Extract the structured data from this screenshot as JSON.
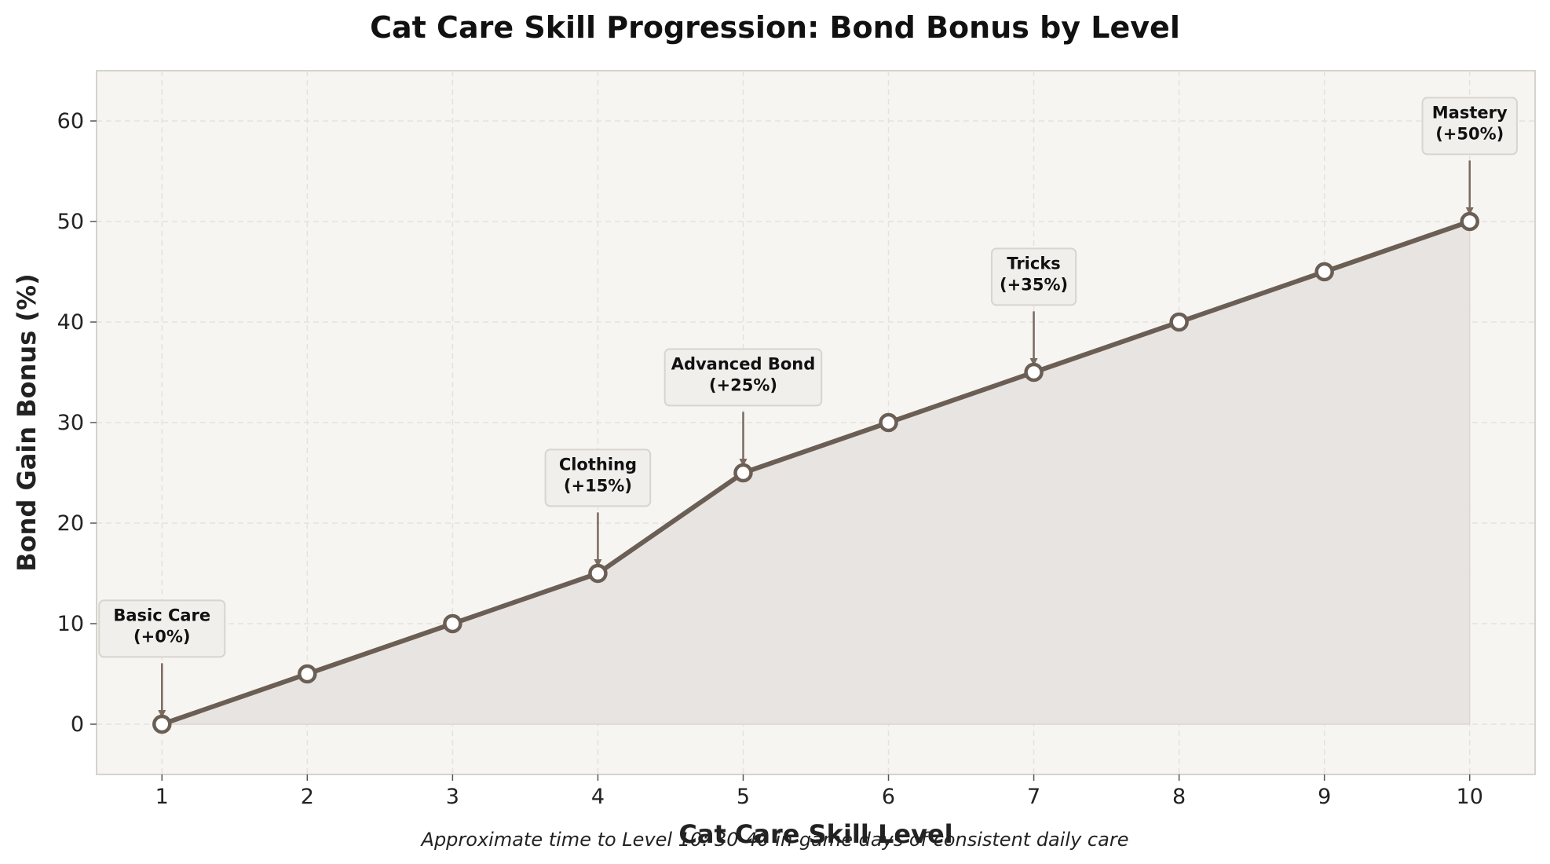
{
  "chart_data": {
    "type": "line",
    "title": "Cat Care Skill Progression: Bond Bonus by Level",
    "xlabel": "Cat Care Skill Level",
    "ylabel": "Bond Gain Bonus (%)",
    "footnote": "Approximate time to Level 10: 30-40 in-game days of consistent daily care",
    "x": [
      1,
      2,
      3,
      4,
      5,
      6,
      7,
      8,
      9,
      10
    ],
    "values": [
      0,
      5,
      10,
      15,
      25,
      30,
      35,
      40,
      45,
      50
    ],
    "xlim": [
      0.55,
      10.45
    ],
    "ylim": [
      -5,
      65
    ],
    "xticks": [
      "1",
      "2",
      "3",
      "4",
      "5",
      "6",
      "7",
      "8",
      "9",
      "10"
    ],
    "yticks": [
      "0",
      "10",
      "20",
      "30",
      "40",
      "50",
      "60"
    ],
    "grid": true,
    "fill_under_line": true,
    "annotations": [
      {
        "x": 1,
        "y": 0,
        "text_y": 9.5,
        "lines": [
          "Basic Care",
          "(+0%)"
        ]
      },
      {
        "x": 4,
        "y": 15,
        "text_y": 24.5,
        "lines": [
          "Clothing",
          "(+15%)"
        ]
      },
      {
        "x": 5,
        "y": 25,
        "text_y": 34.5,
        "lines": [
          "Advanced Bond",
          "(+25%)"
        ]
      },
      {
        "x": 7,
        "y": 35,
        "text_y": 44.5,
        "lines": [
          "Tricks",
          "(+35%)"
        ]
      },
      {
        "x": 10,
        "y": 50,
        "text_y": 59.5,
        "lines": [
          "Mastery",
          "(+50%)"
        ]
      }
    ],
    "colors": {
      "line": "#6b5e55",
      "fill": "#e8e4e1",
      "plot_background": "#f6f5f2",
      "frame": "#d8d2cc",
      "grid": "#e6e1dc",
      "arrow": "#7a6a5f",
      "marker_fill": "#ffffff",
      "annotation_box": "#f1efec",
      "annotation_border": "#d9d4cf"
    }
  }
}
